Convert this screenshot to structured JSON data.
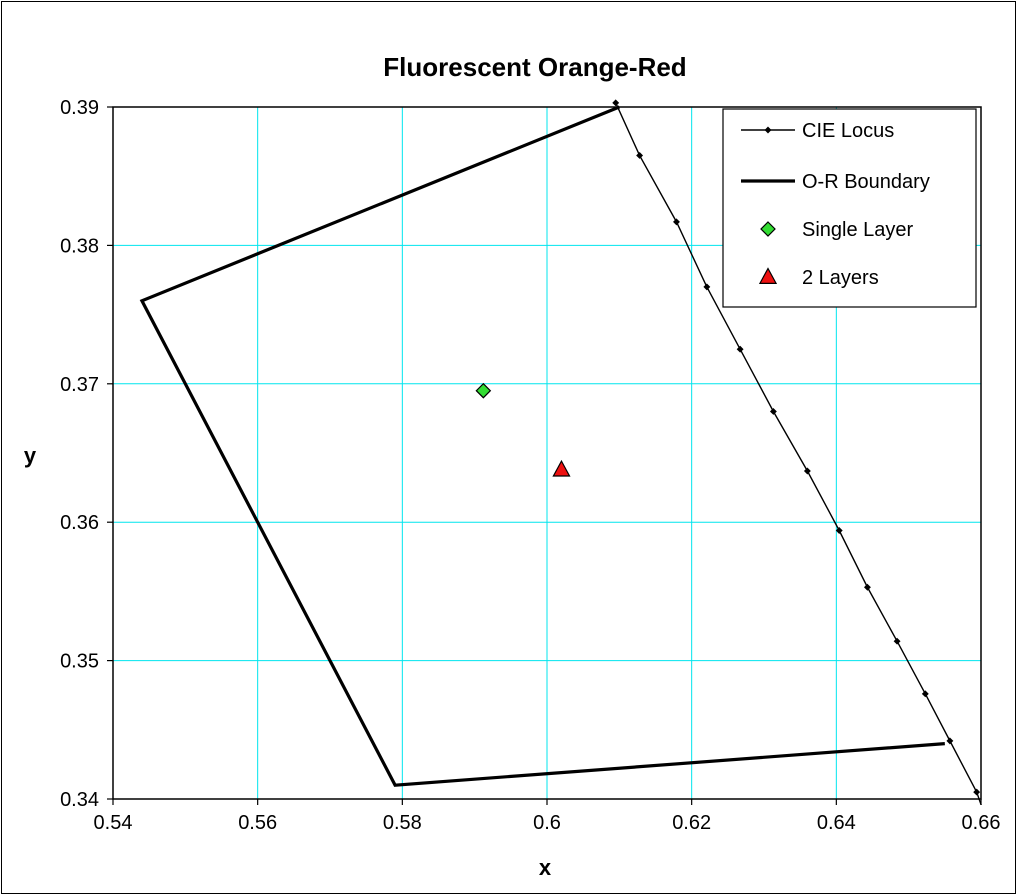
{
  "chart_data": {
    "type": "scatter",
    "title": "Fluorescent Orange-Red",
    "xlabel": "x",
    "ylabel": "y",
    "xlim": [
      0.54,
      0.66
    ],
    "ylim": [
      0.34,
      0.39
    ],
    "x_ticks": [
      0.54,
      0.56,
      0.58,
      0.6,
      0.62,
      0.64,
      0.66
    ],
    "y_ticks": [
      0.34,
      0.35,
      0.36,
      0.37,
      0.38,
      0.39
    ],
    "x_tick_labels": [
      "0.54",
      "0.56",
      "0.58",
      "0.6",
      "0.62",
      "0.64",
      "0.66"
    ],
    "y_tick_labels": [
      "0.34",
      "0.35",
      "0.36",
      "0.37",
      "0.38",
      "0.39"
    ],
    "grid": true,
    "grid_color": "#00e5ee",
    "legend_position": "top-right",
    "series": [
      {
        "name": "CIE Locus",
        "kind": "line-with-markers",
        "color": "#000000",
        "points": [
          [
            0.6095,
            0.3903
          ],
          [
            0.6128,
            0.3865
          ],
          [
            0.6179,
            0.3817
          ],
          [
            0.6221,
            0.377
          ],
          [
            0.6267,
            0.3725
          ],
          [
            0.6313,
            0.368
          ],
          [
            0.636,
            0.3637
          ],
          [
            0.6404,
            0.3594
          ],
          [
            0.6443,
            0.3553
          ],
          [
            0.6484,
            0.3514
          ],
          [
            0.6523,
            0.3476
          ],
          [
            0.6557,
            0.3442
          ],
          [
            0.6594,
            0.3405
          ],
          [
            0.6602,
            0.3393
          ]
        ]
      },
      {
        "name": "O-R Boundary",
        "kind": "line",
        "color": "#000000",
        "points": [
          [
            0.61,
            0.39
          ],
          [
            0.544,
            0.376
          ],
          [
            0.579,
            0.341
          ],
          [
            0.655,
            0.344
          ]
        ]
      },
      {
        "name": "Single Layer",
        "kind": "marker",
        "marker": "diamond",
        "color": "#33dd33",
        "points": [
          [
            0.5912,
            0.3695
          ]
        ]
      },
      {
        "name": "2 Layers",
        "kind": "marker",
        "marker": "triangle",
        "color": "#ee1111",
        "points": [
          [
            0.602,
            0.3638
          ]
        ]
      }
    ]
  }
}
